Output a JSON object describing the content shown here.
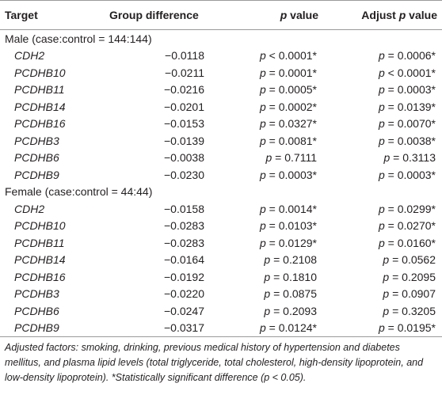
{
  "table": {
    "header": [
      "Target",
      "Group difference",
      "p value",
      "Adjust p value"
    ],
    "sections": [
      {
        "title": "Male (case:control = 144:144)",
        "rows": [
          [
            "CDH2",
            "−0.0118",
            "p < 0.0001*",
            "p = 0.0006*"
          ],
          [
            "PCDHB10",
            "−0.0211",
            "p = 0.0001*",
            "p < 0.0001*"
          ],
          [
            "PCDHB11",
            "−0.0216",
            "p = 0.0005*",
            "p = 0.0003*"
          ],
          [
            "PCDHB14",
            "−0.0201",
            "p = 0.0002*",
            "p = 0.0139*"
          ],
          [
            "PCDHB16",
            "−0.0153",
            "p = 0.0327*",
            "p = 0.0070*"
          ],
          [
            "PCDHB3",
            "−0.0139",
            "p = 0.0081*",
            "p = 0.0038*"
          ],
          [
            "PCDHB6",
            "−0.0038",
            "p = 0.7111",
            "p = 0.3113"
          ],
          [
            "PCDHB9",
            "−0.0230",
            "p = 0.0003*",
            "p = 0.0003*"
          ]
        ]
      },
      {
        "title": "Female (case:control = 44:44)",
        "rows": [
          [
            "CDH2",
            "−0.0158",
            "p = 0.0014*",
            "p = 0.0299*"
          ],
          [
            "PCDHB10",
            "−0.0283",
            "p = 0.0103*",
            "p = 0.0270*"
          ],
          [
            "PCDHB11",
            "−0.0283",
            "p = 0.0129*",
            "p = 0.0160*"
          ],
          [
            "PCDHB14",
            "−0.0164",
            "p = 0.2108",
            "p = 0.0562"
          ],
          [
            "PCDHB16",
            "−0.0192",
            "p = 0.1810",
            "p = 0.2095"
          ],
          [
            "PCDHB3",
            "−0.0220",
            "p = 0.0875",
            "p = 0.0907"
          ],
          [
            "PCDHB6",
            "−0.0247",
            "p = 0.2093",
            "p = 0.3205"
          ],
          [
            "PCDHB9",
            "−0.0317",
            "p = 0.0124*",
            "p = 0.0195*"
          ]
        ]
      }
    ],
    "footnote": "Adjusted factors: smoking, drinking, previous medical history of hypertension and diabetes mellitus, and plasma lipid levels (total triglyceride, total cholesterol, high-density lipoprotein, and low-density lipoprotein). *Statistically significant difference (p < 0.05)."
  }
}
